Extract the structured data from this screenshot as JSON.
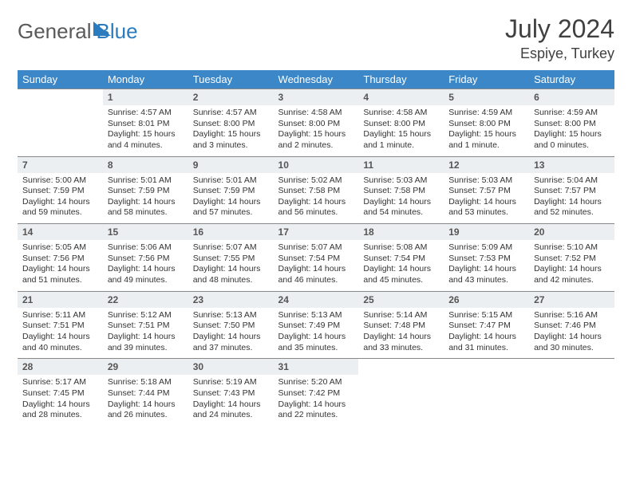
{
  "logo": {
    "part1": "General",
    "part2": "Blue"
  },
  "title": "July 2024",
  "location": "Espiye, Turkey",
  "colors": {
    "header_bg": "#3b87c8",
    "daynum_bg": "#eceff1",
    "border": "#888888",
    "text": "#333333",
    "logo_blue": "#2b7bbf"
  },
  "weekdays": [
    "Sunday",
    "Monday",
    "Tuesday",
    "Wednesday",
    "Thursday",
    "Friday",
    "Saturday"
  ],
  "weeks": [
    [
      {
        "n": "",
        "sr": "",
        "ss": "",
        "dl": ""
      },
      {
        "n": "1",
        "sr": "Sunrise: 4:57 AM",
        "ss": "Sunset: 8:01 PM",
        "dl": "Daylight: 15 hours and 4 minutes."
      },
      {
        "n": "2",
        "sr": "Sunrise: 4:57 AM",
        "ss": "Sunset: 8:00 PM",
        "dl": "Daylight: 15 hours and 3 minutes."
      },
      {
        "n": "3",
        "sr": "Sunrise: 4:58 AM",
        "ss": "Sunset: 8:00 PM",
        "dl": "Daylight: 15 hours and 2 minutes."
      },
      {
        "n": "4",
        "sr": "Sunrise: 4:58 AM",
        "ss": "Sunset: 8:00 PM",
        "dl": "Daylight: 15 hours and 1 minute."
      },
      {
        "n": "5",
        "sr": "Sunrise: 4:59 AM",
        "ss": "Sunset: 8:00 PM",
        "dl": "Daylight: 15 hours and 1 minute."
      },
      {
        "n": "6",
        "sr": "Sunrise: 4:59 AM",
        "ss": "Sunset: 8:00 PM",
        "dl": "Daylight: 15 hours and 0 minutes."
      }
    ],
    [
      {
        "n": "7",
        "sr": "Sunrise: 5:00 AM",
        "ss": "Sunset: 7:59 PM",
        "dl": "Daylight: 14 hours and 59 minutes."
      },
      {
        "n": "8",
        "sr": "Sunrise: 5:01 AM",
        "ss": "Sunset: 7:59 PM",
        "dl": "Daylight: 14 hours and 58 minutes."
      },
      {
        "n": "9",
        "sr": "Sunrise: 5:01 AM",
        "ss": "Sunset: 7:59 PM",
        "dl": "Daylight: 14 hours and 57 minutes."
      },
      {
        "n": "10",
        "sr": "Sunrise: 5:02 AM",
        "ss": "Sunset: 7:58 PM",
        "dl": "Daylight: 14 hours and 56 minutes."
      },
      {
        "n": "11",
        "sr": "Sunrise: 5:03 AM",
        "ss": "Sunset: 7:58 PM",
        "dl": "Daylight: 14 hours and 54 minutes."
      },
      {
        "n": "12",
        "sr": "Sunrise: 5:03 AM",
        "ss": "Sunset: 7:57 PM",
        "dl": "Daylight: 14 hours and 53 minutes."
      },
      {
        "n": "13",
        "sr": "Sunrise: 5:04 AM",
        "ss": "Sunset: 7:57 PM",
        "dl": "Daylight: 14 hours and 52 minutes."
      }
    ],
    [
      {
        "n": "14",
        "sr": "Sunrise: 5:05 AM",
        "ss": "Sunset: 7:56 PM",
        "dl": "Daylight: 14 hours and 51 minutes."
      },
      {
        "n": "15",
        "sr": "Sunrise: 5:06 AM",
        "ss": "Sunset: 7:56 PM",
        "dl": "Daylight: 14 hours and 49 minutes."
      },
      {
        "n": "16",
        "sr": "Sunrise: 5:07 AM",
        "ss": "Sunset: 7:55 PM",
        "dl": "Daylight: 14 hours and 48 minutes."
      },
      {
        "n": "17",
        "sr": "Sunrise: 5:07 AM",
        "ss": "Sunset: 7:54 PM",
        "dl": "Daylight: 14 hours and 46 minutes."
      },
      {
        "n": "18",
        "sr": "Sunrise: 5:08 AM",
        "ss": "Sunset: 7:54 PM",
        "dl": "Daylight: 14 hours and 45 minutes."
      },
      {
        "n": "19",
        "sr": "Sunrise: 5:09 AM",
        "ss": "Sunset: 7:53 PM",
        "dl": "Daylight: 14 hours and 43 minutes."
      },
      {
        "n": "20",
        "sr": "Sunrise: 5:10 AM",
        "ss": "Sunset: 7:52 PM",
        "dl": "Daylight: 14 hours and 42 minutes."
      }
    ],
    [
      {
        "n": "21",
        "sr": "Sunrise: 5:11 AM",
        "ss": "Sunset: 7:51 PM",
        "dl": "Daylight: 14 hours and 40 minutes."
      },
      {
        "n": "22",
        "sr": "Sunrise: 5:12 AM",
        "ss": "Sunset: 7:51 PM",
        "dl": "Daylight: 14 hours and 39 minutes."
      },
      {
        "n": "23",
        "sr": "Sunrise: 5:13 AM",
        "ss": "Sunset: 7:50 PM",
        "dl": "Daylight: 14 hours and 37 minutes."
      },
      {
        "n": "24",
        "sr": "Sunrise: 5:13 AM",
        "ss": "Sunset: 7:49 PM",
        "dl": "Daylight: 14 hours and 35 minutes."
      },
      {
        "n": "25",
        "sr": "Sunrise: 5:14 AM",
        "ss": "Sunset: 7:48 PM",
        "dl": "Daylight: 14 hours and 33 minutes."
      },
      {
        "n": "26",
        "sr": "Sunrise: 5:15 AM",
        "ss": "Sunset: 7:47 PM",
        "dl": "Daylight: 14 hours and 31 minutes."
      },
      {
        "n": "27",
        "sr": "Sunrise: 5:16 AM",
        "ss": "Sunset: 7:46 PM",
        "dl": "Daylight: 14 hours and 30 minutes."
      }
    ],
    [
      {
        "n": "28",
        "sr": "Sunrise: 5:17 AM",
        "ss": "Sunset: 7:45 PM",
        "dl": "Daylight: 14 hours and 28 minutes."
      },
      {
        "n": "29",
        "sr": "Sunrise: 5:18 AM",
        "ss": "Sunset: 7:44 PM",
        "dl": "Daylight: 14 hours and 26 minutes."
      },
      {
        "n": "30",
        "sr": "Sunrise: 5:19 AM",
        "ss": "Sunset: 7:43 PM",
        "dl": "Daylight: 14 hours and 24 minutes."
      },
      {
        "n": "31",
        "sr": "Sunrise: 5:20 AM",
        "ss": "Sunset: 7:42 PM",
        "dl": "Daylight: 14 hours and 22 minutes."
      },
      {
        "n": "",
        "sr": "",
        "ss": "",
        "dl": ""
      },
      {
        "n": "",
        "sr": "",
        "ss": "",
        "dl": ""
      },
      {
        "n": "",
        "sr": "",
        "ss": "",
        "dl": ""
      }
    ]
  ]
}
